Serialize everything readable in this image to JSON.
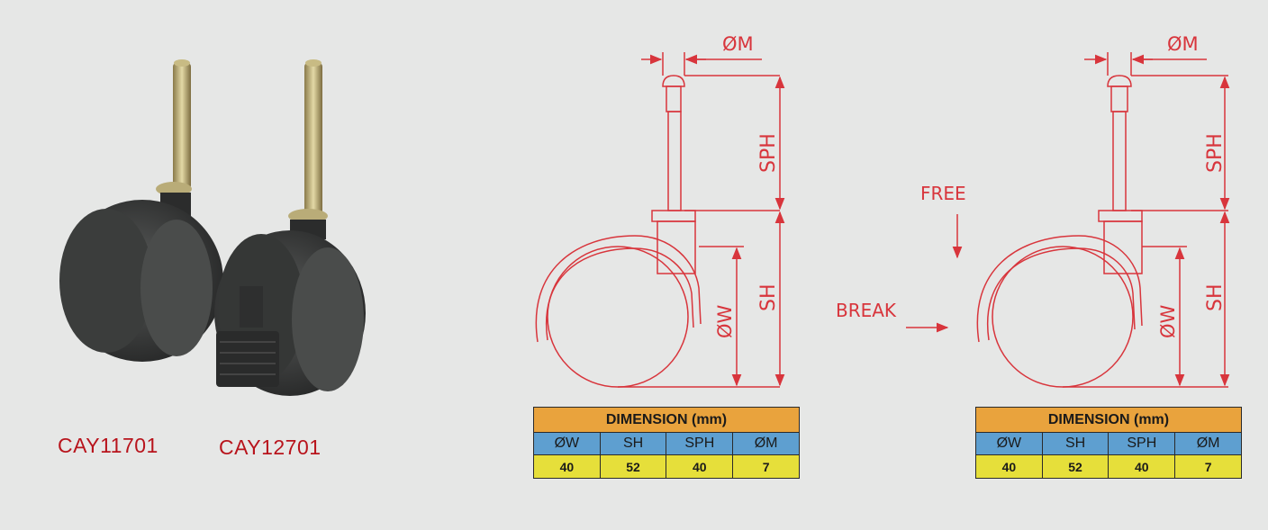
{
  "products": [
    {
      "code": "CAY11701"
    },
    {
      "code": "CAY12701"
    }
  ],
  "drawing_labels": {
    "m": "ØM",
    "sph": "SPH",
    "sh": "SH",
    "w": "ØW",
    "free": "FREE",
    "break": "BREAK"
  },
  "tables": [
    {
      "title": "DIMENSION (mm)",
      "headers": [
        "ØW",
        "SH",
        "SPH",
        "ØM"
      ],
      "values": [
        "40",
        "52",
        "40",
        "7"
      ]
    },
    {
      "title": "DIMENSION (mm)",
      "headers": [
        "ØW",
        "SH",
        "SPH",
        "ØM"
      ],
      "values": [
        "40",
        "52",
        "40",
        "7"
      ]
    }
  ],
  "colors": {
    "drawing_line": "#d8353c",
    "label_text": "#b8141c",
    "table_title_bg": "#e9a33d",
    "table_header_bg": "#5e9fd0",
    "table_value_bg": "#e6df3a"
  }
}
